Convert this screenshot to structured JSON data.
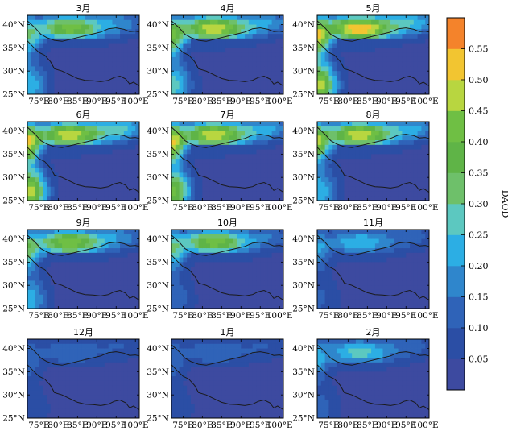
{
  "chart_data": {
    "type": "heatmap",
    "colorbar": {
      "label": "DAOD",
      "ticks": [
        "0.05",
        "0.10",
        "0.15",
        "0.20",
        "0.25",
        "0.30",
        "0.35",
        "0.40",
        "0.45",
        "0.50",
        "0.55"
      ],
      "range": [
        0,
        0.6
      ],
      "levels": [
        0,
        0.05,
        0.1,
        0.15,
        0.2,
        0.25,
        0.3,
        0.35,
        0.4,
        0.45,
        0.5,
        0.55,
        0.6
      ],
      "colors": [
        "#3d4aa0",
        "#2b4ea5",
        "#2f63b8",
        "#2f86cc",
        "#2caee4",
        "#5cc8c0",
        "#6ec06a",
        "#5fb447",
        "#6fbf44",
        "#b8d640",
        "#f2c531",
        "#f4832b"
      ]
    },
    "x_ticks": [
      "75°E",
      "80°E",
      "85°E",
      "90°E",
      "95°E",
      "100°E"
    ],
    "y_ticks": [
      "25°N",
      "30°N",
      "35°N",
      "40°N"
    ],
    "xlim": [
      72,
      101
    ],
    "ylim": [
      25,
      42
    ],
    "panels": [
      {
        "title": "3月",
        "dust_peak": 0.4,
        "sw_peak": 0.22,
        "nw_peak": 0.22,
        "east_peak": 0.12
      },
      {
        "title": "4月",
        "dust_peak": 0.47,
        "sw_peak": 0.25,
        "nw_peak": 0.3,
        "east_peak": 0.15
      },
      {
        "title": "5月",
        "dust_peak": 0.52,
        "sw_peak": 0.45,
        "nw_peak": 0.4,
        "east_peak": 0.18
      },
      {
        "title": "6月",
        "dust_peak": 0.47,
        "sw_peak": 0.45,
        "nw_peak": 0.42,
        "east_peak": 0.2
      },
      {
        "title": "7月",
        "dust_peak": 0.47,
        "sw_peak": 0.38,
        "nw_peak": 0.4,
        "east_peak": 0.16
      },
      {
        "title": "8月",
        "dust_peak": 0.47,
        "sw_peak": 0.22,
        "nw_peak": 0.35,
        "east_peak": 0.16
      },
      {
        "title": "9月",
        "dust_peak": 0.42,
        "sw_peak": 0.2,
        "nw_peak": 0.25,
        "east_peak": 0.12
      },
      {
        "title": "10月",
        "dust_peak": 0.4,
        "sw_peak": 0.12,
        "nw_peak": 0.22,
        "east_peak": 0.1
      },
      {
        "title": "11月",
        "dust_peak": 0.22,
        "sw_peak": 0.08,
        "nw_peak": 0.15,
        "east_peak": 0.08
      },
      {
        "title": "12月",
        "dust_peak": 0.12,
        "sw_peak": 0.07,
        "nw_peak": 0.1,
        "east_peak": 0.06
      },
      {
        "title": "1月",
        "dust_peak": 0.12,
        "sw_peak": 0.07,
        "nw_peak": 0.1,
        "east_peak": 0.06
      },
      {
        "title": "2月",
        "dust_peak": 0.25,
        "sw_peak": 0.1,
        "nw_peak": 0.15,
        "east_peak": 0.08
      }
    ]
  }
}
